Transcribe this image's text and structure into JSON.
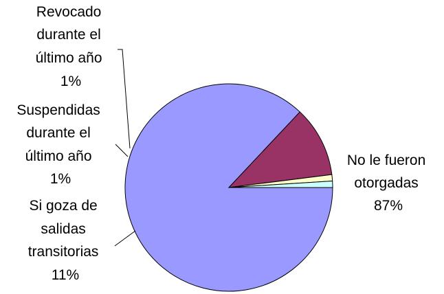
{
  "chart_data": {
    "type": "pie",
    "title": "",
    "slices": [
      {
        "label_lines": [
          "No le fueron",
          "otorgadas"
        ],
        "pct_text": "87%",
        "value": 87,
        "color": "#9999FF"
      },
      {
        "label_lines": [
          "Si goza de",
          "salidas",
          "transitorias"
        ],
        "pct_text": "11%",
        "value": 11,
        "color": "#993366"
      },
      {
        "label_lines": [
          "Suspendidas",
          "durante el",
          "último año"
        ],
        "pct_text": "1%",
        "value": 1,
        "color": "#FFFFCC"
      },
      {
        "label_lines": [
          "Revocado",
          "durante el",
          "último año"
        ],
        "pct_text": "1%",
        "value": 1,
        "color": "#CCFFFF"
      }
    ]
  }
}
